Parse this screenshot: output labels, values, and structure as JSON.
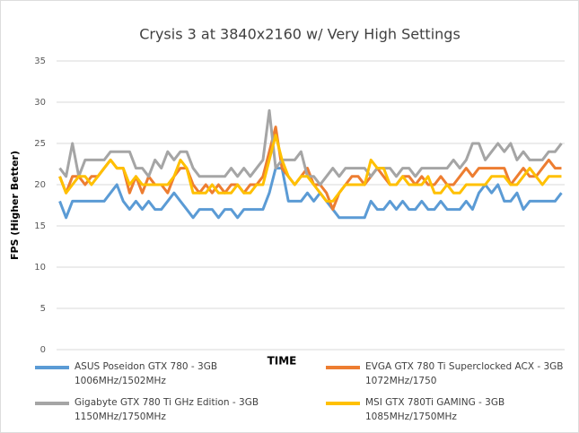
{
  "chart_data": {
    "type": "line",
    "title": "Crysis 3 at 3840x2160 w/ Very High Settings",
    "x_label": "TIME",
    "y_label": "FPS (Higher Better)",
    "categories": [
      null,
      null,
      null,
      null,
      null,
      null,
      null,
      null,
      null,
      null,
      null,
      null,
      null,
      null,
      null,
      null,
      null,
      null,
      null,
      null,
      null,
      null,
      null,
      null,
      null,
      null,
      null,
      null,
      null,
      null,
      null,
      null,
      null,
      null,
      null,
      null,
      null,
      null,
      null,
      null,
      null,
      null,
      null,
      null,
      null,
      null,
      null,
      null,
      null,
      null,
      null,
      null,
      null,
      null,
      null,
      null,
      null,
      null,
      null,
      null,
      null,
      null,
      null,
      null,
      null,
      null,
      null,
      null,
      null,
      null,
      null,
      null,
      null,
      null,
      null,
      null,
      null,
      null,
      null,
      null
    ],
    "ylim": [
      0,
      35
    ],
    "yticks": [
      0,
      5,
      10,
      15,
      20,
      25,
      30,
      35
    ],
    "grid": true,
    "legend": "bottom",
    "series": [
      {
        "name": "ASUS Poseidon GTX 780 - 3GB\n1006MHz/1502MHz",
        "color": "#5b9bd5",
        "values": [
          18,
          16,
          18,
          18,
          18,
          18,
          18,
          18,
          19,
          20,
          18,
          17,
          18,
          17,
          18,
          17,
          17,
          18,
          19,
          18,
          17,
          16,
          17,
          17,
          17,
          16,
          17,
          17,
          16,
          17,
          17,
          17,
          17,
          19,
          22,
          22,
          18,
          18,
          18,
          19,
          18,
          19,
          18,
          17,
          16,
          16,
          16,
          16,
          16,
          18,
          17,
          17,
          18,
          17,
          18,
          17,
          17,
          18,
          17,
          17,
          18,
          17,
          17,
          17,
          18,
          17,
          19,
          20,
          19,
          20,
          18,
          18,
          19,
          17,
          18,
          18,
          18,
          18,
          18,
          19
        ]
      },
      {
        "name": "EVGA GTX 780 Ti Superclocked ACX - 3GB\n1072MHz/1750",
        "color": "#ed7d31",
        "values": [
          21,
          19,
          21,
          21,
          20,
          21,
          21,
          22,
          23,
          22,
          22,
          19,
          21,
          19,
          21,
          20,
          20,
          19,
          21,
          22,
          22,
          20,
          19,
          20,
          19,
          20,
          19,
          20,
          20,
          19,
          20,
          20,
          21,
          24,
          27,
          22,
          21,
          20,
          21,
          22,
          20,
          20,
          19,
          17,
          19,
          20,
          21,
          21,
          20,
          21,
          22,
          21,
          20,
          20,
          21,
          21,
          20,
          21,
          20,
          20,
          21,
          20,
          20,
          21,
          22,
          21,
          22,
          22,
          22,
          22,
          22,
          20,
          21,
          22,
          21,
          21,
          22,
          23,
          22,
          22
        ]
      },
      {
        "name": "Gigabyte GTX 780 Ti GHz Edition - 3GB\n1150MHz/1750MHz",
        "color": "#a5a5a5",
        "values": [
          22,
          21,
          25,
          21,
          23,
          23,
          23,
          23,
          24,
          24,
          24,
          24,
          22,
          22,
          21,
          23,
          22,
          24,
          23,
          24,
          24,
          22,
          21,
          21,
          21,
          21,
          21,
          22,
          21,
          22,
          21,
          22,
          23,
          29,
          22,
          23,
          23,
          23,
          24,
          21,
          21,
          20,
          21,
          22,
          21,
          22,
          22,
          22,
          22,
          21,
          22,
          22,
          22,
          21,
          22,
          22,
          21,
          22,
          22,
          22,
          22,
          22,
          23,
          22,
          23,
          25,
          25,
          23,
          24,
          25,
          24,
          25,
          23,
          24,
          23,
          23,
          23,
          24,
          24,
          25
        ]
      },
      {
        "name": "MSI GTX 780Ti GAMING - 3GB\n1085MHz/1750MHz",
        "color": "#ffc000",
        "values": [
          21,
          19,
          20,
          21,
          21,
          20,
          21,
          22,
          23,
          22,
          22,
          20,
          21,
          20,
          20,
          20,
          20,
          20,
          21,
          23,
          22,
          19,
          19,
          19,
          20,
          19,
          19,
          19,
          20,
          19,
          19,
          20,
          20,
          23,
          26,
          23,
          21,
          20,
          21,
          21,
          20,
          19,
          18,
          18,
          19,
          20,
          20,
          20,
          20,
          23,
          22,
          22,
          20,
          20,
          21,
          20,
          20,
          20,
          21,
          19,
          19,
          20,
          19,
          19,
          20,
          20,
          20,
          20,
          21,
          21,
          21,
          20,
          20,
          21,
          22,
          21,
          20,
          21,
          21,
          21
        ]
      }
    ]
  }
}
